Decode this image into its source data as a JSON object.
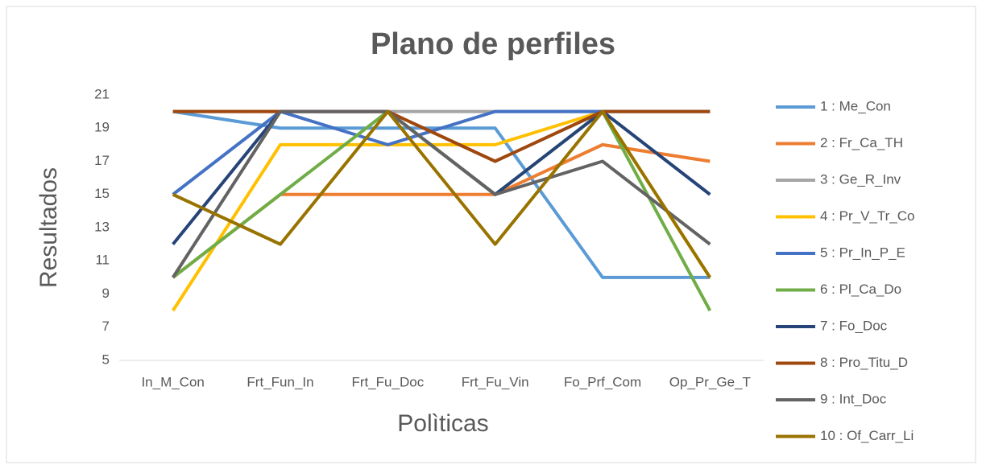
{
  "chart_data": {
    "type": "line",
    "title": "Plano de perfiles",
    "xlabel": "Polìticas",
    "ylabel": "Resultados",
    "categories": [
      "In_M_Con",
      "Frt_Fun_In",
      "Frt_Fu_Doc",
      "Frt_Fu_Vin",
      "Fo_Prf_Com",
      "Op_Pr_Ge_T"
    ],
    "series": [
      {
        "name": "1 : Me_Con",
        "color": "#5b9bd5",
        "values": [
          20,
          19,
          19,
          19,
          10,
          10
        ]
      },
      {
        "name": "2 : Fr_Ca_TH",
        "color": "#ed7d31",
        "values": [
          10,
          15,
          15,
          15,
          18,
          17
        ]
      },
      {
        "name": "3 : Ge_R_Inv",
        "color": "#a5a5a5",
        "values": [
          20,
          20,
          20,
          20,
          20,
          20
        ]
      },
      {
        "name": "4 : Pr_V_Tr_Co",
        "color": "#ffc000",
        "values": [
          8,
          18,
          18,
          18,
          20,
          10
        ]
      },
      {
        "name": "5 : Pr_In_P_E",
        "color": "#4472c4",
        "values": [
          15,
          20,
          18,
          20,
          20,
          20
        ]
      },
      {
        "name": "6 : Pl_Ca_Do",
        "color": "#70ad47",
        "values": [
          10,
          15,
          20,
          15,
          20,
          8
        ]
      },
      {
        "name": "7 : Fo_Doc",
        "color": "#264478",
        "values": [
          12,
          20,
          20,
          15,
          20,
          15
        ]
      },
      {
        "name": "8 : Pro_Titu_D",
        "color": "#9e480e",
        "values": [
          20,
          20,
          20,
          17,
          20,
          20
        ]
      },
      {
        "name": "9 : Int_Doc",
        "color": "#636363",
        "values": [
          10,
          20,
          20,
          15,
          17,
          12
        ]
      },
      {
        "name": "10 : Of_Carr_Li",
        "color": "#997300",
        "values": [
          15,
          12,
          20,
          12,
          20,
          10
        ]
      }
    ],
    "ylim": [
      5,
      21
    ],
    "yticks": [
      5,
      7,
      9,
      11,
      13,
      15,
      17,
      19,
      21
    ],
    "grid": false,
    "legend": "right"
  }
}
